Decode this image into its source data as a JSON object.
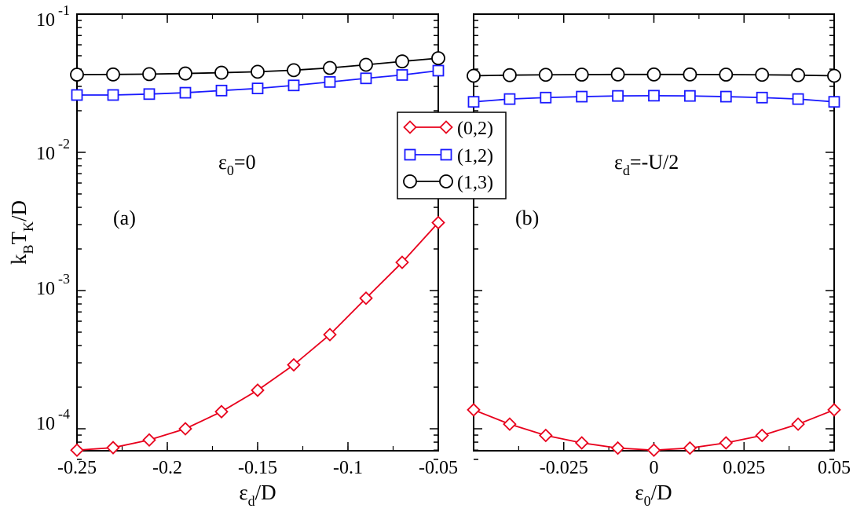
{
  "chart_data": [
    {
      "panel_label": "(a)",
      "type": "line",
      "yscale": "log",
      "ylim": [
        6e-05,
        0.1
      ],
      "xlim": [
        -0.25,
        -0.05
      ],
      "x": [
        -0.25,
        -0.23,
        -0.21,
        -0.19,
        -0.17,
        -0.15,
        -0.13,
        -0.11,
        -0.09,
        -0.07,
        -0.05
      ],
      "x_ticks": [
        -0.25,
        -0.2,
        -0.15,
        -0.1,
        -0.05
      ],
      "x_tick_labels": [
        "-0.25",
        "-0.2",
        "-0.15",
        "-0.1",
        "-0.05"
      ],
      "xlabel": {
        "base": "ε",
        "sub": "d",
        "rest": "/D"
      },
      "ylabel": {
        "k": "k",
        "k_sub": "B",
        "t": "T",
        "t_sub": "K",
        "rest": "/D"
      },
      "annotation": {
        "base": "ε",
        "sub": "0",
        "rest": "=0"
      },
      "series": [
        {
          "name": "(0,2)",
          "color": "#e8001c",
          "marker": "diamond",
          "values": [
            7e-05,
            7.3e-05,
            8.3e-05,
            0.0001,
            0.000133,
            0.00019,
            0.00029,
            0.00048,
            0.00088,
            0.0016,
            0.0031
          ]
        },
        {
          "name": "(1,2)",
          "color": "#1a1aff",
          "marker": "square",
          "values": [
            0.026,
            0.026,
            0.0264,
            0.027,
            0.028,
            0.029,
            0.0305,
            0.0323,
            0.0343,
            0.0363,
            0.039
          ]
        },
        {
          "name": "(1,3)",
          "color": "#000000",
          "marker": "circle",
          "values": [
            0.0365,
            0.0366,
            0.0368,
            0.0372,
            0.0377,
            0.0383,
            0.0393,
            0.0408,
            0.043,
            0.0455,
            0.048
          ]
        }
      ]
    },
    {
      "panel_label": "(b)",
      "type": "line",
      "yscale": "log",
      "ylim": [
        6e-05,
        0.1
      ],
      "xlim": [
        -0.05,
        0.05
      ],
      "x": [
        -0.05,
        -0.04,
        -0.03,
        -0.02,
        -0.01,
        0,
        0.01,
        0.02,
        0.03,
        0.04,
        0.05
      ],
      "x_ticks": [
        -0.025,
        0,
        0.025,
        0.05
      ],
      "x_tick_labels": [
        "-0.025",
        "0",
        "0.025",
        "0.05"
      ],
      "xlabel": {
        "base": "ε",
        "sub": "0",
        "rest": "/D"
      },
      "annotation": {
        "base": "ε",
        "sub": "d",
        "rest": "=-U/2"
      },
      "series": [
        {
          "name": "(0,2)",
          "color": "#e8001c",
          "marker": "diamond",
          "values": [
            0.000137,
            0.000108,
            8.95e-05,
            7.9e-05,
            7.25e-05,
            7e-05,
            7.25e-05,
            7.9e-05,
            8.95e-05,
            0.000108,
            0.000137
          ]
        },
        {
          "name": "(1,2)",
          "color": "#1a1aff",
          "marker": "square",
          "values": [
            0.0232,
            0.0243,
            0.0249,
            0.0253,
            0.0256,
            0.0257,
            0.0256,
            0.0253,
            0.0249,
            0.0243,
            0.0232
          ]
        },
        {
          "name": "(1,3)",
          "color": "#000000",
          "marker": "circle",
          "values": [
            0.0358,
            0.0362,
            0.0364,
            0.0365,
            0.0366,
            0.0366,
            0.0366,
            0.0365,
            0.0364,
            0.0362,
            0.0358
          ]
        }
      ]
    }
  ],
  "y_ticks": [
    {
      "value": 0.1,
      "base": "10",
      "exp": "-1"
    },
    {
      "value": 0.01,
      "base": "10",
      "exp": "-2"
    },
    {
      "value": 0.001,
      "base": "10",
      "exp": "-3"
    },
    {
      "value": 0.0001,
      "base": "10",
      "exp": "-4"
    }
  ],
  "legend": {
    "placement": "center-top",
    "entries": [
      "(0,2)",
      "(1,2)",
      "(1,3)"
    ]
  }
}
